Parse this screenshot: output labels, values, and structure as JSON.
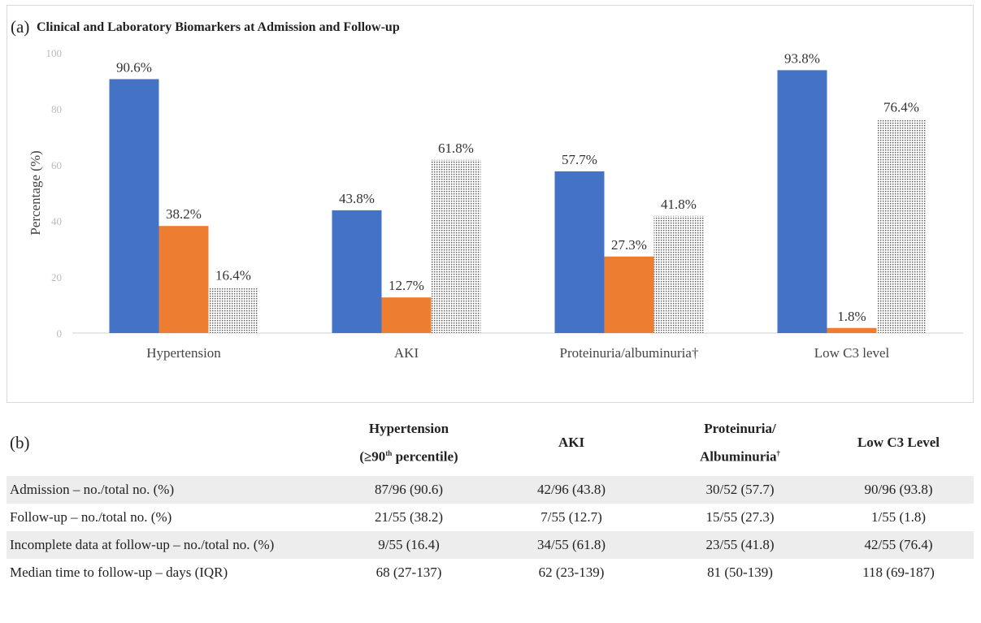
{
  "panel_a": {
    "label": "(a)",
    "title": "Clinical and Laboratory Biomarkers at Admission and Follow-up"
  },
  "chart_data": {
    "type": "bar",
    "title": "Clinical and Laboratory Biomarkers at Admission and Follow-up",
    "xlabel": "",
    "ylabel": "Percentage (%)",
    "ylim": [
      0,
      100
    ],
    "yticks": [
      0,
      20,
      40,
      60,
      80,
      100
    ],
    "grid": false,
    "legend": "none",
    "categories": [
      "Hypertension",
      "AKI",
      "Proteinuria/albuminuria†",
      "Low C3 level"
    ],
    "series": [
      {
        "color": "#4472c4",
        "pattern": "solid",
        "values": [
          90.6,
          43.8,
          57.7,
          93.8
        ],
        "labels": [
          "90.6%",
          "43.8%",
          "57.7%",
          "93.8%"
        ]
      },
      {
        "color": "#ed7d31",
        "pattern": "solid",
        "values": [
          38.2,
          12.7,
          27.3,
          1.8
        ],
        "labels": [
          "38.2%",
          "12.7%",
          "27.3%",
          "1.8%"
        ]
      },
      {
        "color": "#ffffff",
        "pattern": "dotted",
        "values": [
          16.4,
          61.8,
          41.8,
          76.4
        ],
        "labels": [
          "16.4%",
          "61.8%",
          "41.8%",
          "76.4%"
        ]
      }
    ]
  },
  "panel_b": {
    "label": "(b)",
    "headers": [
      {
        "line1": "Hypertension",
        "line2": "(≥90",
        "sup": "th",
        "line2b": " percentile)"
      },
      {
        "line1": "AKI",
        "line2": "",
        "sup": "",
        "line2b": ""
      },
      {
        "line1": "Proteinuria/",
        "line2": "Albuminuria",
        "sup": "†",
        "line2b": ""
      },
      {
        "line1": "Low C3 Level",
        "line2": "",
        "sup": "",
        "line2b": ""
      }
    ],
    "rows": [
      {
        "label": "Admission – no./total no. (%)",
        "cells": [
          "87/96 (90.6)",
          "42/96 (43.8)",
          "30/52 (57.7)",
          "90/96 (93.8)"
        ]
      },
      {
        "label": "Follow-up – no./total no. (%)",
        "cells": [
          "21/55 (38.2)",
          "7/55 (12.7)",
          "15/55 (27.3)",
          "1/55 (1.8)"
        ]
      },
      {
        "label": "Incomplete data at follow-up – no./total no. (%)",
        "cells": [
          "9/55 (16.4)",
          "34/55 (61.8)",
          "23/55 (41.8)",
          "42/55 (76.4)"
        ]
      },
      {
        "label": "Median time to follow-up – days (IQR)",
        "cells": [
          "68 (27-137)",
          "62 (23-139)",
          "81 (50-139)",
          "118 (69-187)"
        ]
      }
    ]
  }
}
